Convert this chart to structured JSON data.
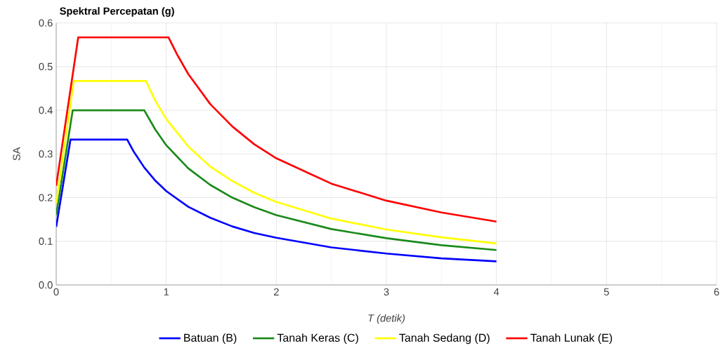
{
  "chart_data": {
    "type": "line",
    "title": "Spektral Percepatan (g)",
    "xlabel": "T (detik)",
    "ylabel": "SA",
    "xlim": [
      0,
      6
    ],
    "ylim": [
      0,
      0.6
    ],
    "xticks": [
      0,
      1,
      2,
      3,
      4,
      5,
      6
    ],
    "yticks": [
      {
        "value": 0,
        "label": "0.0"
      },
      {
        "value": 0.1,
        "label": "0.1"
      },
      {
        "value": 0.2,
        "label": "0.2"
      },
      {
        "value": 0.3,
        "label": "0.3"
      },
      {
        "value": 0.4,
        "label": "0.4"
      },
      {
        "value": 0.5,
        "label": "0.5"
      },
      {
        "value": 0.6,
        "label": "0.6"
      }
    ],
    "grid": true,
    "legend": "bottom",
    "series": [
      {
        "name": "Batuan (B)",
        "color": "#0000ff",
        "x": [
          0,
          0.13,
          0.645,
          0.7,
          0.8,
          0.9,
          1.0,
          1.2,
          1.4,
          1.6,
          1.8,
          2.0,
          2.5,
          3.0,
          3.5,
          4.0
        ],
        "values": [
          0.133,
          0.333,
          0.333,
          0.307,
          0.269,
          0.239,
          0.215,
          0.179,
          0.154,
          0.134,
          0.119,
          0.108,
          0.086,
          0.072,
          0.061,
          0.054
        ]
      },
      {
        "name": "Tanah Keras (C)",
        "color": "#1a8a1a",
        "x": [
          0,
          0.15,
          0.8,
          0.9,
          1.0,
          1.2,
          1.4,
          1.6,
          1.8,
          2.0,
          2.5,
          3.0,
          3.5,
          4.0
        ],
        "values": [
          0.16,
          0.4,
          0.4,
          0.356,
          0.32,
          0.267,
          0.229,
          0.2,
          0.178,
          0.16,
          0.128,
          0.107,
          0.091,
          0.08
        ]
      },
      {
        "name": "Tanah Sedang (D)",
        "color": "#ffff00",
        "x": [
          0,
          0.16,
          0.815,
          0.9,
          1.0,
          1.2,
          1.4,
          1.6,
          1.8,
          2.0,
          2.5,
          3.0,
          3.5,
          4.0
        ],
        "values": [
          0.187,
          0.467,
          0.467,
          0.422,
          0.38,
          0.317,
          0.271,
          0.238,
          0.211,
          0.19,
          0.152,
          0.127,
          0.109,
          0.095
        ]
      },
      {
        "name": "Tanah Lunak (E)",
        "color": "#ff0000",
        "x": [
          0,
          0.2,
          1.02,
          1.1,
          1.2,
          1.4,
          1.6,
          1.8,
          2.0,
          2.5,
          3.0,
          3.5,
          4.0
        ],
        "values": [
          0.227,
          0.567,
          0.567,
          0.527,
          0.483,
          0.414,
          0.363,
          0.322,
          0.29,
          0.232,
          0.193,
          0.166,
          0.145
        ]
      }
    ]
  }
}
